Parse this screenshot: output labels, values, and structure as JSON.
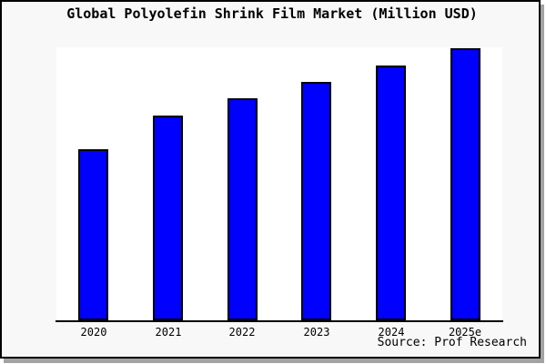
{
  "header": {
    "title": "Global Polyolefin Shrink Film Market (Million USD)"
  },
  "footer": {
    "source": "Source: Prof Research"
  },
  "colors": {
    "bar_fill": "#0000ff",
    "bar_border": "#000000",
    "panel_background": "#f8f8f8",
    "plot_background": "#ffffff",
    "frame_border": "#000000",
    "drop_shadow": "#a3a3a3"
  },
  "chart_data": {
    "type": "bar",
    "title": "Global Polyolefin Shrink Film Market (Million USD)",
    "categories": [
      "2020",
      "2021",
      "2022",
      "2023",
      "2024",
      "2025e"
    ],
    "values": [
      63,
      75,
      81,
      88,
      94,
      100
    ],
    "values_note": "no y-axis labels shown in image; values estimated as percent of tallest bar",
    "bar_heights_pct_of_plot": [
      62.8,
      75.0,
      81.2,
      87.4,
      93.4,
      99.7
    ],
    "xlabel": "",
    "ylabel": "",
    "y_axis_ticks": [],
    "grid": false,
    "legend": "none",
    "annotation": "Source: Prof Research"
  }
}
